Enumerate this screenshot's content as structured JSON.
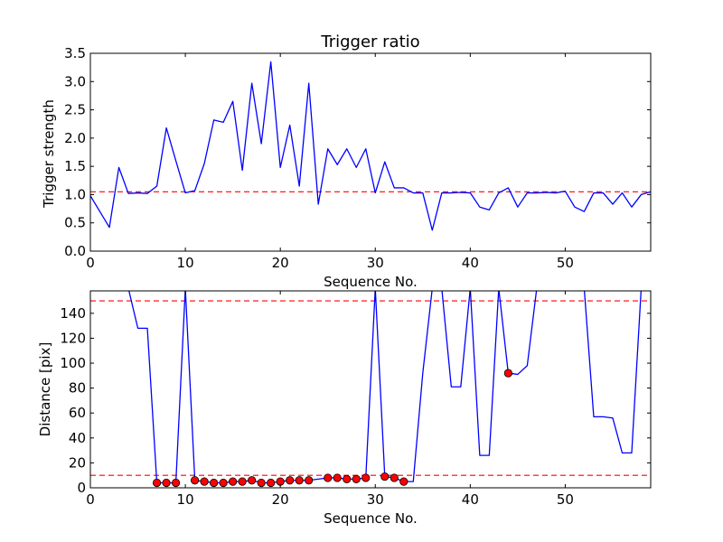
{
  "chart_data": [
    {
      "type": "line",
      "title": "Trigger ratio",
      "xlabel": "Sequence No.",
      "ylabel": "Trigger strength",
      "xlim": [
        0,
        59
      ],
      "ylim": [
        0,
        3.5
      ],
      "xticks": [
        "0",
        "10",
        "20",
        "30",
        "40",
        "50"
      ],
      "yticks": [
        "0.0",
        "0.5",
        "1.0",
        "1.5",
        "2.0",
        "2.5",
        "3.0",
        "3.5"
      ],
      "threshold": 1.05,
      "colors": {
        "line": "#0000ff",
        "threshold": "#ff0000"
      },
      "series": [
        {
          "x": [
            0,
            1,
            2,
            3,
            4,
            5,
            6,
            7,
            8,
            9,
            10,
            11,
            12,
            13,
            14,
            15,
            16,
            17,
            18,
            19,
            20,
            21,
            22,
            23,
            24,
            25,
            26,
            27,
            28,
            29,
            30,
            31,
            32,
            33,
            34,
            35,
            36,
            37,
            38,
            39,
            40,
            41,
            42,
            43,
            44,
            45,
            46,
            47,
            48,
            49,
            50,
            51,
            52,
            53,
            54,
            55,
            56,
            57,
            58,
            59
          ],
          "values": [
            0.98,
            0.7,
            0.42,
            1.48,
            1.02,
            1.03,
            1.02,
            1.15,
            2.18,
            1.6,
            1.03,
            1.07,
            1.55,
            2.32,
            2.28,
            2.65,
            1.43,
            2.97,
            1.9,
            3.35,
            1.48,
            2.23,
            1.15,
            2.97,
            0.83,
            1.81,
            1.53,
            1.81,
            1.48,
            1.81,
            1.03,
            1.58,
            1.12,
            1.12,
            1.03,
            1.03,
            0.37,
            1.03,
            1.03,
            1.04,
            1.03,
            0.78,
            0.73,
            1.03,
            1.12,
            0.78,
            1.03,
            1.03,
            1.04,
            1.03,
            1.06,
            0.78,
            0.7,
            1.03,
            1.03,
            0.83,
            1.03,
            0.78,
            1.0,
            1.05
          ]
        }
      ]
    },
    {
      "type": "line",
      "title": "",
      "xlabel": "Sequence No.",
      "ylabel": "Distance [pix]",
      "xlim": [
        0,
        59
      ],
      "ylim": [
        0,
        158
      ],
      "xticks": [
        "0",
        "10",
        "20",
        "30",
        "40",
        "50"
      ],
      "yticks": [
        "0",
        "20",
        "40",
        "60",
        "80",
        "100",
        "120",
        "140"
      ],
      "thresholds": [
        10,
        150
      ],
      "colors": {
        "line": "#0000ff",
        "threshold": "#ff0000",
        "marker": "#ff0000"
      },
      "series": [
        {
          "x": [
            4,
            5,
            6,
            7,
            8,
            9,
            10,
            11,
            12,
            13,
            14,
            15,
            16,
            17,
            18,
            19,
            20,
            21,
            22,
            23,
            24,
            25,
            26,
            27,
            28,
            29,
            30,
            31,
            32,
            33,
            34,
            35,
            36,
            37,
            38,
            39,
            40,
            41,
            42,
            43,
            44,
            45,
            46,
            47,
            52,
            53,
            54,
            55,
            56,
            57,
            58
          ],
          "values": [
            160,
            128,
            128,
            4,
            4,
            4,
            160,
            6,
            5,
            4,
            4,
            5,
            5,
            6,
            4,
            4,
            5,
            6,
            6,
            6,
            7,
            8,
            8,
            7,
            7,
            8,
            160,
            9,
            8,
            5,
            5,
            92,
            160,
            160,
            81,
            81,
            160,
            26,
            26,
            160,
            92,
            91,
            98,
            160,
            160,
            57,
            57,
            56,
            28,
            28,
            160
          ]
        }
      ],
      "markers": {
        "x": [
          7,
          8,
          9,
          11,
          12,
          13,
          14,
          15,
          16,
          17,
          18,
          19,
          20,
          21,
          22,
          23,
          25,
          26,
          27,
          28,
          29,
          31,
          32,
          33,
          44
        ],
        "values": [
          4,
          4,
          4,
          6,
          5,
          4,
          4,
          5,
          5,
          6,
          4,
          4,
          5,
          6,
          6,
          6,
          8,
          8,
          7,
          7,
          8,
          9,
          8,
          5,
          92
        ]
      }
    }
  ]
}
